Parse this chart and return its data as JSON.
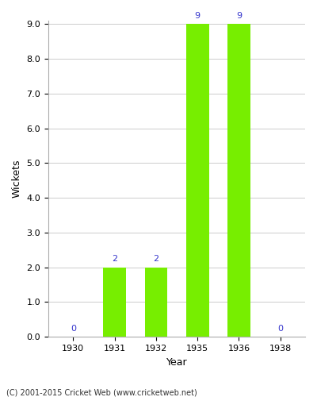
{
  "years": [
    1930,
    1931,
    1932,
    1935,
    1936,
    1938
  ],
  "wickets": [
    0,
    2,
    2,
    9,
    9,
    0
  ],
  "bar_color": "#77ee00",
  "label_color": "#3333cc",
  "xlabel": "Year",
  "ylabel": "Wickets",
  "ylim": [
    0,
    9.0
  ],
  "yticks": [
    0.0,
    1.0,
    2.0,
    3.0,
    4.0,
    5.0,
    6.0,
    7.0,
    8.0,
    9.0
  ],
  "footnote": "(C) 2001-2015 Cricket Web (www.cricketweb.net)",
  "bar_width": 0.55,
  "figsize": [
    4.0,
    5.0
  ],
  "dpi": 100,
  "background_color": "#ffffff",
  "grid_color": "#cccccc",
  "label_fontsize": 8,
  "axis_fontsize": 9,
  "tick_fontsize": 8
}
